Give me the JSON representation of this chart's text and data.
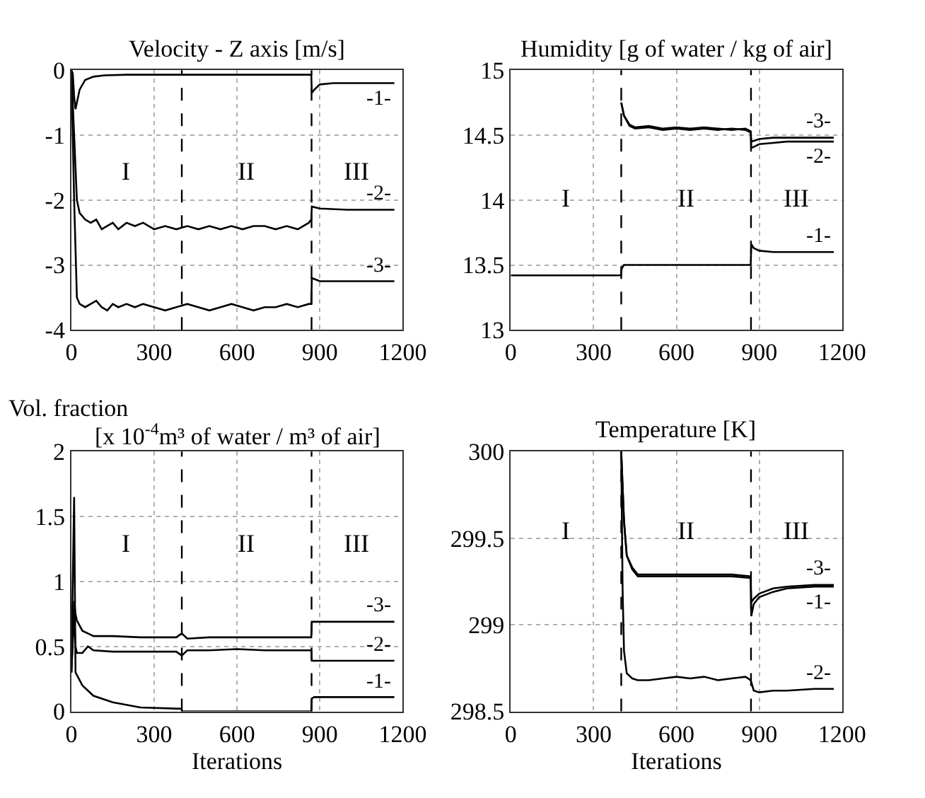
{
  "chart_data": [
    {
      "type": "line",
      "title": "Velocity - Z axis [m/s]",
      "xlim": [
        0,
        1200
      ],
      "xticks": [
        0,
        300,
        600,
        900,
        1200
      ],
      "ylim": [
        -4,
        0
      ],
      "yticks": [
        -4,
        -3,
        -2,
        -1,
        0
      ],
      "grid": true,
      "color": "#000000",
      "ref_lines": [
        {
          "axis": "x",
          "value": 400,
          "line_style": "dashed"
        },
        {
          "axis": "x",
          "value": 870,
          "line_style": "dashed"
        }
      ],
      "annotations": [
        "I",
        "II",
        "III"
      ],
      "series": [
        {
          "name": "-1-",
          "x": [
            0,
            5,
            10,
            15,
            20,
            30,
            50,
            80,
            120,
            200,
            400,
            869,
            871,
            880,
            900,
            950,
            1000,
            1170
          ],
          "values": [
            0,
            -0.05,
            -0.4,
            -0.6,
            -0.5,
            -0.3,
            -0.15,
            -0.1,
            -0.08,
            -0.07,
            -0.07,
            -0.07,
            -0.35,
            -0.3,
            -0.22,
            -0.2,
            -0.2,
            -0.2
          ]
        },
        {
          "name": "-2-",
          "x": [
            0,
            10,
            20,
            30,
            50,
            70,
            90,
            110,
            130,
            150,
            170,
            200,
            230,
            260,
            300,
            340,
            380,
            420,
            460,
            500,
            540,
            580,
            620,
            660,
            700,
            740,
            780,
            820,
            860,
            869,
            871,
            900,
            1000,
            1100,
            1170
          ],
          "values": [
            0,
            -1,
            -2.0,
            -2.2,
            -2.3,
            -2.35,
            -2.3,
            -2.45,
            -2.4,
            -2.35,
            -2.45,
            -2.35,
            -2.4,
            -2.35,
            -2.45,
            -2.4,
            -2.45,
            -2.4,
            -2.45,
            -2.4,
            -2.45,
            -2.4,
            -2.45,
            -2.4,
            -2.4,
            -2.45,
            -2.4,
            -2.45,
            -2.35,
            -2.3,
            -2.1,
            -2.13,
            -2.15,
            -2.15,
            -2.15
          ]
        },
        {
          "name": "-3-",
          "x": [
            0,
            10,
            20,
            30,
            50,
            70,
            90,
            110,
            130,
            150,
            170,
            200,
            230,
            260,
            300,
            340,
            380,
            420,
            460,
            500,
            540,
            580,
            620,
            660,
            700,
            740,
            780,
            820,
            860,
            869,
            871,
            900,
            1000,
            1100,
            1170
          ],
          "values": [
            0,
            -2,
            -3.5,
            -3.6,
            -3.65,
            -3.6,
            -3.55,
            -3.65,
            -3.7,
            -3.6,
            -3.65,
            -3.6,
            -3.65,
            -3.6,
            -3.65,
            -3.7,
            -3.65,
            -3.6,
            -3.65,
            -3.7,
            -3.65,
            -3.6,
            -3.65,
            -3.7,
            -3.65,
            -3.65,
            -3.6,
            -3.65,
            -3.6,
            -3.6,
            -3.2,
            -3.25,
            -3.25,
            -3.25,
            -3.25
          ]
        }
      ]
    },
    {
      "type": "line",
      "title": "Humidity [g of water / kg of air]",
      "xlim": [
        0,
        1200
      ],
      "xticks": [
        0,
        300,
        600,
        900,
        1200
      ],
      "ylim": [
        13,
        15
      ],
      "yticks": [
        13,
        13.5,
        14,
        14.5,
        15
      ],
      "grid": true,
      "color": "#000000",
      "ref_lines": [
        {
          "axis": "x",
          "value": 400,
          "line_style": "dashed"
        },
        {
          "axis": "x",
          "value": 870,
          "line_style": "dashed"
        }
      ],
      "annotations": [
        "I",
        "II",
        "III"
      ],
      "series": [
        {
          "name": "-1-",
          "x": [
            0,
            399,
            401,
            410,
            500,
            600,
            700,
            800,
            869,
            871,
            880,
            900,
            950,
            1000,
            1170
          ],
          "values": [
            13.42,
            13.42,
            13.47,
            13.5,
            13.5,
            13.5,
            13.5,
            13.5,
            13.5,
            13.66,
            13.63,
            13.61,
            13.6,
            13.6,
            13.6
          ]
        },
        {
          "name": "-2-",
          "x": [
            400,
            410,
            430,
            450,
            500,
            550,
            600,
            650,
            700,
            750,
            800,
            850,
            869,
            871,
            900,
            950,
            1000,
            1100,
            1170
          ],
          "values": [
            14.75,
            14.65,
            14.57,
            14.55,
            14.56,
            14.54,
            14.55,
            14.54,
            14.55,
            14.54,
            14.55,
            14.54,
            14.52,
            14.4,
            14.43,
            14.44,
            14.45,
            14.45,
            14.45
          ]
        },
        {
          "name": "-3-",
          "x": [
            400,
            410,
            430,
            450,
            500,
            550,
            600,
            650,
            700,
            750,
            800,
            850,
            869,
            871,
            900,
            950,
            1000,
            1100,
            1170
          ],
          "values": [
            14.75,
            14.65,
            14.58,
            14.56,
            14.57,
            14.55,
            14.56,
            14.55,
            14.56,
            14.55,
            14.54,
            14.55,
            14.53,
            14.45,
            14.47,
            14.48,
            14.48,
            14.48,
            14.48
          ]
        }
      ]
    },
    {
      "type": "line",
      "title": "Vol. fraction\n[x 10$^{-4}$m³ of water / m³ of air]",
      "xlabel": "Iterations",
      "xlim": [
        0,
        1200
      ],
      "xticks": [
        0,
        300,
        600,
        900,
        1200
      ],
      "ylim": [
        0,
        2
      ],
      "yticks": [
        0,
        0.5,
        1,
        1.5,
        2
      ],
      "grid": true,
      "color": "#000000",
      "ref_lines": [
        {
          "axis": "x",
          "value": 400,
          "line_style": "dashed"
        },
        {
          "axis": "x",
          "value": 870,
          "line_style": "dashed"
        }
      ],
      "annotations": [
        "I",
        "II",
        "III"
      ],
      "series": [
        {
          "name": "-1-",
          "x": [
            0,
            5,
            10,
            15,
            20,
            40,
            80,
            150,
            250,
            399,
            401,
            869,
            871,
            880,
            1170
          ],
          "values": [
            0.3,
            1.0,
            1.65,
            0.3,
            0.28,
            0.2,
            0.12,
            0.07,
            0.03,
            0.02,
            0,
            0,
            0.1,
            0.11,
            0.11
          ]
        },
        {
          "name": "-2-",
          "x": [
            0,
            10,
            15,
            20,
            40,
            60,
            80,
            150,
            250,
            380,
            400,
            420,
            500,
            600,
            700,
            800,
            869,
            871,
            900,
            1170
          ],
          "values": [
            0.3,
            0.75,
            0.5,
            0.45,
            0.45,
            0.5,
            0.47,
            0.46,
            0.46,
            0.46,
            0.43,
            0.47,
            0.47,
            0.48,
            0.47,
            0.47,
            0.47,
            0.39,
            0.39,
            0.39
          ]
        },
        {
          "name": "-3-",
          "x": [
            0,
            10,
            15,
            20,
            40,
            60,
            80,
            150,
            250,
            380,
            400,
            420,
            500,
            600,
            700,
            800,
            869,
            871,
            900,
            1170
          ],
          "values": [
            0.3,
            0.85,
            0.75,
            0.7,
            0.62,
            0.6,
            0.58,
            0.58,
            0.57,
            0.57,
            0.6,
            0.56,
            0.57,
            0.57,
            0.57,
            0.57,
            0.57,
            0.69,
            0.69,
            0.69
          ]
        }
      ]
    },
    {
      "type": "line",
      "title": "Temperature [K]",
      "xlabel": "Iterations",
      "xlim": [
        0,
        1200
      ],
      "xticks": [
        0,
        300,
        600,
        900,
        1200
      ],
      "ylim": [
        298.5,
        300
      ],
      "yticks": [
        298.5,
        299,
        299.5,
        300
      ],
      "grid": true,
      "color": "#000000",
      "ref_lines": [
        {
          "axis": "x",
          "value": 400,
          "line_style": "dashed"
        },
        {
          "axis": "x",
          "value": 870,
          "line_style": "dashed"
        }
      ],
      "annotations": [
        "I",
        "II",
        "III"
      ],
      "series": [
        {
          "name": "-1-",
          "x": [
            400,
            410,
            420,
            440,
            460,
            500,
            600,
            700,
            800,
            869,
            871,
            880,
            900,
            950,
            1000,
            1100,
            1170
          ],
          "values": [
            300,
            299.6,
            299.4,
            299.32,
            299.28,
            299.28,
            299.28,
            299.28,
            299.28,
            299.27,
            299.05,
            299.12,
            299.16,
            299.19,
            299.21,
            299.22,
            299.22
          ]
        },
        {
          "name": "-2-",
          "x": [
            400,
            405,
            410,
            420,
            440,
            460,
            500,
            550,
            600,
            650,
            700,
            750,
            800,
            850,
            869,
            880,
            900,
            950,
            1000,
            1100,
            1170
          ],
          "values": [
            300,
            299.2,
            298.85,
            298.72,
            298.69,
            298.68,
            298.68,
            298.69,
            298.7,
            298.69,
            298.7,
            298.68,
            298.69,
            298.7,
            298.68,
            298.62,
            298.61,
            298.62,
            298.62,
            298.63,
            298.63
          ]
        },
        {
          "name": "-3-",
          "x": [
            400,
            410,
            420,
            440,
            460,
            500,
            600,
            700,
            800,
            869,
            871,
            880,
            900,
            950,
            1000,
            1100,
            1170
          ],
          "values": [
            300,
            299.6,
            299.4,
            299.33,
            299.29,
            299.29,
            299.29,
            299.29,
            299.29,
            299.28,
            299.13,
            299.15,
            299.18,
            299.21,
            299.22,
            299.23,
            299.23
          ]
        }
      ]
    }
  ]
}
